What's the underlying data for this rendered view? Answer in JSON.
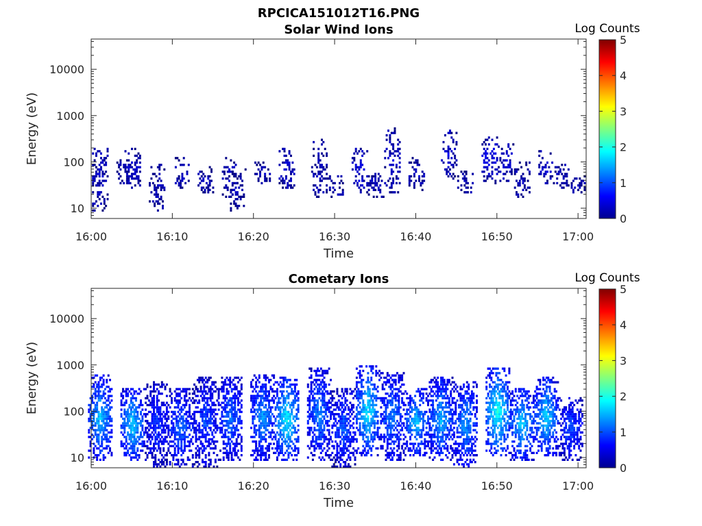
{
  "figure_title": "RPCICA151012T16.PNG",
  "chart_data": [
    {
      "type": "heatmap",
      "title": "Solar Wind Ions",
      "xlabel": "Time",
      "ylabel": "Energy (eV)",
      "x_ticks": [
        "16:00",
        "16:10",
        "16:20",
        "16:30",
        "16:40",
        "16:50",
        "17:00"
      ],
      "xlim": [
        "16:00",
        "17:01"
      ],
      "y_scale": "log",
      "y_ticks": [
        "10",
        "100",
        "1000",
        "10000"
      ],
      "ylim": [
        6,
        45000
      ],
      "colorbar": {
        "label": "Log Counts",
        "ticks": [
          "0",
          "1",
          "2",
          "3",
          "4",
          "5"
        ],
        "range": [
          0,
          5
        ],
        "colormap": "jet"
      },
      "bursts": [
        {
          "t": "16:01",
          "emin": 8,
          "emax": 200,
          "level": 0.35
        },
        {
          "t": "16:04",
          "emin": 30,
          "emax": 110,
          "level": 0.25
        },
        {
          "t": "16:05",
          "emin": 25,
          "emax": 190,
          "level": 0.35
        },
        {
          "t": "16:08",
          "emin": 8,
          "emax": 110,
          "level": 0.25
        },
        {
          "t": "16:11",
          "emin": 25,
          "emax": 120,
          "level": 0.3
        },
        {
          "t": "16:14",
          "emin": 20,
          "emax": 80,
          "level": 0.25
        },
        {
          "t": "16:17",
          "emin": 15,
          "emax": 120,
          "level": 0.3
        },
        {
          "t": "16:18",
          "emin": 8,
          "emax": 70,
          "level": 0.25
        },
        {
          "t": "16:21",
          "emin": 30,
          "emax": 100,
          "level": 0.25
        },
        {
          "t": "16:24",
          "emin": 25,
          "emax": 200,
          "level": 0.4
        },
        {
          "t": "16:28",
          "emin": 15,
          "emax": 300,
          "level": 0.3
        },
        {
          "t": "16:30",
          "emin": 15,
          "emax": 50,
          "level": 0.25
        },
        {
          "t": "16:33",
          "emin": 20,
          "emax": 200,
          "level": 0.45
        },
        {
          "t": "16:35",
          "emin": 15,
          "emax": 60,
          "level": 0.25
        },
        {
          "t": "16:37",
          "emin": 20,
          "emax": 500,
          "level": 0.35
        },
        {
          "t": "16:40",
          "emin": 20,
          "emax": 120,
          "level": 0.3
        },
        {
          "t": "16:44",
          "emin": 40,
          "emax": 450,
          "level": 0.4
        },
        {
          "t": "16:46",
          "emin": 15,
          "emax": 60,
          "level": 0.25
        },
        {
          "t": "16:49",
          "emin": 30,
          "emax": 350,
          "level": 0.55
        },
        {
          "t": "16:51",
          "emin": 35,
          "emax": 250,
          "level": 0.45
        },
        {
          "t": "16:53",
          "emin": 15,
          "emax": 100,
          "level": 0.3
        },
        {
          "t": "16:56",
          "emin": 30,
          "emax": 170,
          "level": 0.4
        },
        {
          "t": "16:58",
          "emin": 25,
          "emax": 100,
          "level": 0.3
        },
        {
          "t": "17:00",
          "emin": 20,
          "emax": 50,
          "level": 0.25
        }
      ]
    },
    {
      "type": "heatmap",
      "title": "Cometary Ions",
      "xlabel": "Time",
      "ylabel": "Energy (eV)",
      "x_ticks": [
        "16:00",
        "16:10",
        "16:20",
        "16:30",
        "16:40",
        "16:50",
        "17:00"
      ],
      "xlim": [
        "16:00",
        "17:01"
      ],
      "y_scale": "log",
      "y_ticks": [
        "10",
        "100",
        "1000",
        "10000"
      ],
      "ylim": [
        6,
        45000
      ],
      "colorbar": {
        "label": "Log Counts",
        "ticks": [
          "0",
          "1",
          "2",
          "3",
          "4",
          "5"
        ],
        "range": [
          0,
          5
        ],
        "colormap": "jet"
      },
      "bursts": [
        {
          "t": "16:01",
          "emin": 8,
          "emax": 600,
          "level": 1.6
        },
        {
          "t": "16:05",
          "emin": 8,
          "emax": 300,
          "level": 1.7
        },
        {
          "t": "16:08",
          "emin": 6,
          "emax": 400,
          "level": 0.9
        },
        {
          "t": "16:11",
          "emin": 6,
          "emax": 300,
          "level": 1.2
        },
        {
          "t": "16:14",
          "emin": 6,
          "emax": 500,
          "level": 1.0
        },
        {
          "t": "16:17",
          "emin": 8,
          "emax": 500,
          "level": 1.2
        },
        {
          "t": "16:21",
          "emin": 8,
          "emax": 600,
          "level": 1.4
        },
        {
          "t": "16:24",
          "emin": 8,
          "emax": 500,
          "level": 1.9
        },
        {
          "t": "16:28",
          "emin": 8,
          "emax": 800,
          "level": 1.3
        },
        {
          "t": "16:31",
          "emin": 6,
          "emax": 300,
          "level": 1.1
        },
        {
          "t": "16:34",
          "emin": 10,
          "emax": 900,
          "level": 1.8
        },
        {
          "t": "16:37",
          "emin": 8,
          "emax": 700,
          "level": 1.3
        },
        {
          "t": "16:40",
          "emin": 10,
          "emax": 300,
          "level": 1.6
        },
        {
          "t": "16:43",
          "emin": 8,
          "emax": 500,
          "level": 1.5
        },
        {
          "t": "16:46",
          "emin": 6,
          "emax": 400,
          "level": 1.4
        },
        {
          "t": "16:50",
          "emin": 10,
          "emax": 800,
          "level": 2.0
        },
        {
          "t": "16:53",
          "emin": 8,
          "emax": 300,
          "level": 1.7
        },
        {
          "t": "16:56",
          "emin": 10,
          "emax": 500,
          "level": 1.7
        },
        {
          "t": "16:59",
          "emin": 8,
          "emax": 200,
          "level": 1.0
        }
      ]
    }
  ]
}
